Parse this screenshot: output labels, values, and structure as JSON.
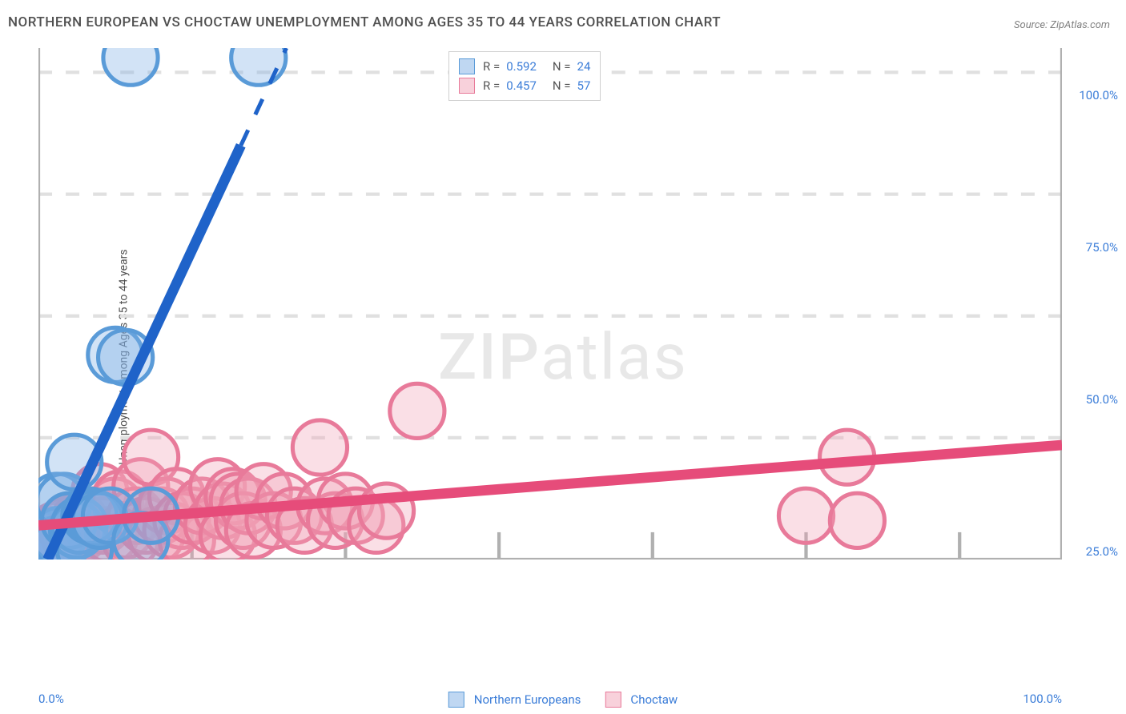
{
  "chart": {
    "type": "scatter",
    "title": "NORTHERN EUROPEAN VS CHOCTAW UNEMPLOYMENT AMONG AGES 35 TO 44 YEARS CORRELATION CHART",
    "source": "Source: ZipAtlas.com",
    "watermark_bold": "ZIP",
    "watermark_light": "atlas",
    "ylabel": "Unemployment Among Ages 35 to 44 years",
    "xlim": [
      0,
      100
    ],
    "ylim": [
      0,
      105
    ],
    "xtick_labels": [
      "0.0%",
      "100.0%"
    ],
    "ytick_values": [
      25,
      50,
      75,
      100
    ],
    "ytick_labels": [
      "25.0%",
      "50.0%",
      "75.0%",
      "100.0%"
    ],
    "xtick_minor": [
      15,
      30,
      45,
      60,
      75,
      90
    ],
    "background_color": "#ffffff",
    "grid_color": "#e0e0e0",
    "axis_color": "#b0b0b0",
    "title_color": "#505050",
    "label_color": "#505050",
    "tick_label_color": "#3b7dd8",
    "title_fontsize": 17,
    "label_fontsize": 14,
    "tick_fontsize": 15,
    "series": [
      {
        "name": "Northern Europeans",
        "color": "#7fb0e6",
        "fill": "rgba(127,176,230,0.35)",
        "stroke": "#5a9bd8",
        "marker_radius": 8,
        "R": "0.592",
        "N": "24",
        "trend": {
          "slope": 4.5,
          "intercept": -4,
          "color": "#1f63c9",
          "width": 3
        },
        "points": [
          [
            0.5,
            2
          ],
          [
            0.8,
            3
          ],
          [
            1,
            2.5
          ],
          [
            1.2,
            4
          ],
          [
            1.5,
            3
          ],
          [
            1.8,
            12
          ],
          [
            2,
            5
          ],
          [
            2.3,
            3.5
          ],
          [
            2.5,
            12
          ],
          [
            3,
            8
          ],
          [
            3.5,
            20
          ],
          [
            3.8,
            6
          ],
          [
            4,
            7
          ],
          [
            4.5,
            2
          ],
          [
            5,
            9
          ],
          [
            5.5,
            8.5
          ],
          [
            6,
            8
          ],
          [
            7,
            9
          ],
          [
            7.5,
            42
          ],
          [
            8.5,
            41.5
          ],
          [
            9,
            103
          ],
          [
            10,
            4
          ],
          [
            11,
            9
          ],
          [
            21.5,
            103
          ]
        ]
      },
      {
        "name": "Choctaw",
        "color": "#f2a3b8",
        "fill": "rgba(242,163,184,0.35)",
        "stroke": "#e87a9a",
        "marker_radius": 8,
        "R": "0.457",
        "N": "57",
        "trend": {
          "slope": 0.165,
          "intercept": 7,
          "color": "#e64c7a",
          "width": 3
        },
        "points": [
          [
            0.5,
            3
          ],
          [
            1,
            5
          ],
          [
            1.3,
            4
          ],
          [
            1.7,
            6
          ],
          [
            2,
            3.5
          ],
          [
            2.5,
            7
          ],
          [
            3,
            5
          ],
          [
            3.5,
            4
          ],
          [
            4,
            8
          ],
          [
            4.5,
            6
          ],
          [
            5,
            3
          ],
          [
            5.5,
            9
          ],
          [
            6,
            14
          ],
          [
            6.3,
            7
          ],
          [
            7,
            5
          ],
          [
            7.5,
            11
          ],
          [
            8,
            12.5
          ],
          [
            8.5,
            6
          ],
          [
            9,
            4
          ],
          [
            9.5,
            9
          ],
          [
            10,
            15
          ],
          [
            10.5,
            7
          ],
          [
            11,
            21
          ],
          [
            11.5,
            5
          ],
          [
            12,
            9
          ],
          [
            12.5,
            11
          ],
          [
            13,
            6
          ],
          [
            13.5,
            13
          ],
          [
            14,
            8
          ],
          [
            14.5,
            4
          ],
          [
            15,
            9
          ],
          [
            16,
            11
          ],
          [
            17,
            7
          ],
          [
            17.5,
            15
          ],
          [
            18,
            10
          ],
          [
            18.5,
            5
          ],
          [
            19,
            13
          ],
          [
            19.5,
            12
          ],
          [
            20,
            8
          ],
          [
            20.5,
            11
          ],
          [
            21,
            6
          ],
          [
            22,
            14
          ],
          [
            23,
            8
          ],
          [
            24,
            12
          ],
          [
            25,
            9
          ],
          [
            26,
            7
          ],
          [
            27.5,
            23
          ],
          [
            28,
            11
          ],
          [
            29,
            8
          ],
          [
            30,
            12
          ],
          [
            31,
            9
          ],
          [
            33,
            7
          ],
          [
            34,
            10
          ],
          [
            37,
            30.5
          ],
          [
            75,
            9
          ],
          [
            79,
            21
          ],
          [
            80,
            8
          ]
        ]
      }
    ],
    "legend_top": {
      "rows": [
        {
          "swatch_fill": "rgba(127,176,230,0.5)",
          "swatch_stroke": "#5a9bd8",
          "r_label": "R =",
          "r_val": "0.592",
          "n_label": "N =",
          "n_val": "24"
        },
        {
          "swatch_fill": "rgba(242,163,184,0.5)",
          "swatch_stroke": "#e87a9a",
          "r_label": "R =",
          "r_val": "0.457",
          "n_label": "N =",
          "n_val": "57"
        }
      ]
    },
    "legend_bottom": [
      {
        "swatch_fill": "rgba(127,176,230,0.5)",
        "swatch_stroke": "#5a9bd8",
        "label": "Northern Europeans"
      },
      {
        "swatch_fill": "rgba(242,163,184,0.5)",
        "swatch_stroke": "#e87a9a",
        "label": "Choctaw"
      }
    ]
  }
}
